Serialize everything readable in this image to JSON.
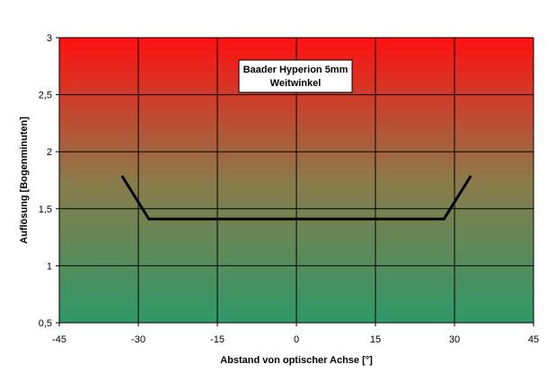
{
  "chart_data": {
    "type": "line",
    "title": "Baader Hyperion 5mm",
    "subtitle": "Weitwinkel",
    "xlabel": "Abstand von optischer Achse [°]",
    "ylabel": "Auflösung [Bogenminuten]",
    "xlim": [
      -45,
      45
    ],
    "ylim": [
      0.5,
      3
    ],
    "x_ticks": [
      -45,
      -30,
      -15,
      0,
      15,
      30,
      45
    ],
    "x_tick_labels": [
      "-45",
      "-30",
      "-15",
      "0",
      "15",
      "30",
      "45"
    ],
    "y_ticks": [
      0.5,
      1,
      1.5,
      2,
      2.5,
      3
    ],
    "y_tick_labels": [
      "0,5",
      "1",
      "1,5",
      "2",
      "2,5",
      "3"
    ],
    "grid": true,
    "series": [
      {
        "x": [
          -33,
          -28,
          28,
          33
        ],
        "y": [
          1.78,
          1.41,
          1.41,
          1.78
        ]
      }
    ],
    "colors": {
      "background_top": "#ff1010",
      "background_middle": "#8c7a4a",
      "background_bottom": "#2e9968",
      "line": "#000000",
      "grid": "#000000"
    }
  }
}
